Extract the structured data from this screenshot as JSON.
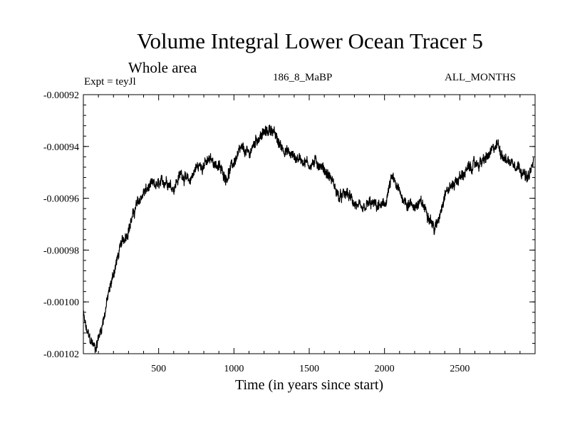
{
  "chart_data": {
    "type": "line",
    "title": "Volume Integral Lower Ocean Tracer 5",
    "subtitle": "Whole area",
    "experiment_label": "Expt = teyJl",
    "run_label": "186_8_MaBP",
    "months_label": "ALL_MONTHS",
    "xlabel": "Time (in years since start)",
    "ylabel": "",
    "xlim": [
      0,
      3000
    ],
    "ylim": [
      -0.00102,
      -0.00092
    ],
    "x_ticks": [
      500,
      1000,
      1500,
      2000,
      2500
    ],
    "x_tick_labels": [
      "500",
      "1000",
      "1500",
      "2000",
      "2500"
    ],
    "y_ticks": [
      -0.00092,
      -0.00094,
      -0.00096,
      -0.00098,
      -0.001,
      -0.00102
    ],
    "y_tick_labels": [
      "-0.00092",
      "-0.00094",
      "-0.00096",
      "-0.00098",
      "-0.00100",
      "-0.00102"
    ],
    "grid": false,
    "series": [
      {
        "name": "Tracer 5",
        "color": "#000000",
        "x": [
          0,
          20,
          40,
          60,
          80,
          100,
          120,
          140,
          160,
          200,
          250,
          300,
          350,
          400,
          450,
          500,
          550,
          600,
          650,
          700,
          750,
          800,
          850,
          900,
          950,
          1000,
          1050,
          1100,
          1150,
          1200,
          1250,
          1300,
          1350,
          1400,
          1450,
          1500,
          1550,
          1600,
          1650,
          1700,
          1750,
          1800,
          1850,
          1900,
          1950,
          2000,
          2050,
          2100,
          2150,
          2200,
          2250,
          2300,
          2330,
          2350,
          2400,
          2450,
          2500,
          2550,
          2600,
          2650,
          2700,
          2750,
          2800,
          2850,
          2900,
          2950,
          2990
        ],
        "values": [
          -0.001005,
          -0.001011,
          -0.001014,
          -0.001016,
          -0.001018,
          -0.001014,
          -0.00101,
          -0.001005,
          -0.000999,
          -0.000989,
          -0.000978,
          -0.000972,
          -0.000963,
          -0.000958,
          -0.000955,
          -0.000955,
          -0.000953,
          -0.000956,
          -0.00095,
          -0.000954,
          -0.000948,
          -0.000947,
          -0.000945,
          -0.000948,
          -0.000952,
          -0.000946,
          -0.000941,
          -0.000943,
          -0.000937,
          -0.000935,
          -0.000933,
          -0.000939,
          -0.000942,
          -0.000944,
          -0.000945,
          -0.000947,
          -0.000946,
          -0.000949,
          -0.000953,
          -0.00096,
          -0.000958,
          -0.000962,
          -0.000965,
          -0.000962,
          -0.000963,
          -0.000963,
          -0.000952,
          -0.000958,
          -0.000962,
          -0.000963,
          -0.000962,
          -0.000967,
          -0.000972,
          -0.00097,
          -0.000958,
          -0.000955,
          -0.000952,
          -0.000949,
          -0.000947,
          -0.000946,
          -0.000943,
          -0.000939,
          -0.000945,
          -0.000946,
          -0.000948,
          -0.000953,
          -0.000946
        ]
      }
    ]
  }
}
